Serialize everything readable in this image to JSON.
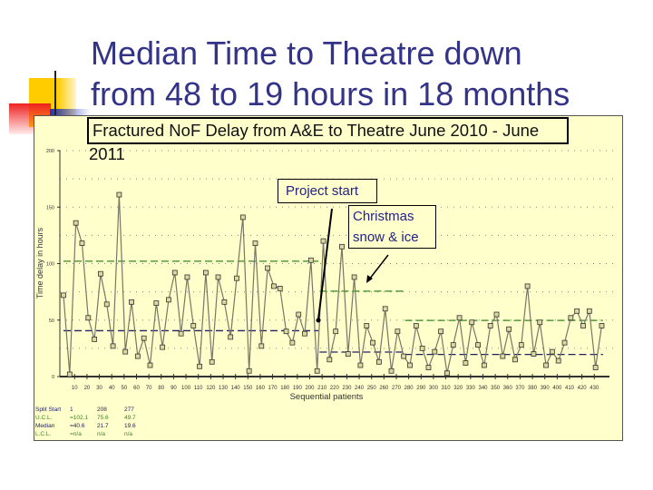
{
  "slide": {
    "title_line1": "Median Time to Theatre down",
    "title_line2": "from 48 to 19 hours in 18 months"
  },
  "chart_data": {
    "type": "line",
    "title": "Fractured NoF Delay from A&E to Theatre June 2010 - June 2011",
    "xlabel": "Sequential patients",
    "ylabel": "Time delay in hours",
    "xlim": [
      1,
      437
    ],
    "ylim": [
      0,
      200
    ],
    "y_ticks": [
      "0",
      "50",
      "100",
      "150",
      "200"
    ],
    "x_ticks": [
      "10",
      "20",
      "30",
      "40",
      "50",
      "60",
      "70",
      "80",
      "90",
      "100",
      "110",
      "120",
      "130",
      "140",
      "150",
      "160",
      "170",
      "180",
      "190",
      "200",
      "210",
      "220",
      "230",
      "240",
      "250",
      "260",
      "270",
      "280",
      "290",
      "300",
      "310",
      "320",
      "330",
      "340",
      "350",
      "360",
      "370",
      "380",
      "390",
      "400",
      "410",
      "420",
      "430"
    ],
    "grid": "horizontal dotted every 25",
    "series": [
      {
        "x_start": 1,
        "x_step": 5,
        "values": [
          72,
          2,
          136,
          118,
          52,
          33,
          91,
          64,
          27,
          161,
          22,
          66,
          18,
          34,
          10,
          65,
          26,
          68,
          92,
          38,
          88,
          45,
          9,
          92,
          13,
          88,
          66,
          35,
          87,
          141,
          5,
          118,
          27,
          96,
          80,
          78,
          40,
          30,
          55,
          38,
          103,
          5,
          120,
          15,
          40,
          115,
          20,
          88,
          10,
          45,
          30,
          13,
          60,
          5,
          40,
          18,
          10,
          45,
          25,
          8,
          22,
          40,
          3,
          28,
          52,
          12,
          48,
          28,
          10,
          45,
          55,
          18,
          42,
          15,
          28,
          80,
          20,
          48,
          10,
          22,
          14,
          30,
          52,
          58,
          45,
          58,
          8,
          45
        ],
        "color": "#777766"
      }
    ],
    "limits": [
      {
        "split_start": 1,
        "end": 207,
        "ucl": 102.1,
        "median": 40.6
      },
      {
        "split_start": 208,
        "end": 276,
        "ucl": 75.6,
        "median": 21.7
      },
      {
        "split_start": 277,
        "end": 437,
        "ucl": 49.7,
        "median": 19.6
      }
    ],
    "ucl_color": "#338822",
    "median_color": "#222266",
    "annotations": [
      {
        "text": "Project start"
      },
      {
        "text_line1": "Christmas",
        "text_line2": "snow & ice"
      }
    ],
    "stats_table": {
      "rows": [
        {
          "label": "Split Start",
          "v": [
            "1",
            "208",
            "277"
          ]
        },
        {
          "label": "U.C.L.",
          "v": [
            "=102.1",
            "75.6",
            "49.7"
          ]
        },
        {
          "label": "Median",
          "v": [
            "=40.6",
            "21.7",
            "19.6"
          ]
        },
        {
          "label": "L.C.L.",
          "v": [
            "=n/a",
            "n/a",
            "n/a"
          ]
        }
      ]
    }
  }
}
